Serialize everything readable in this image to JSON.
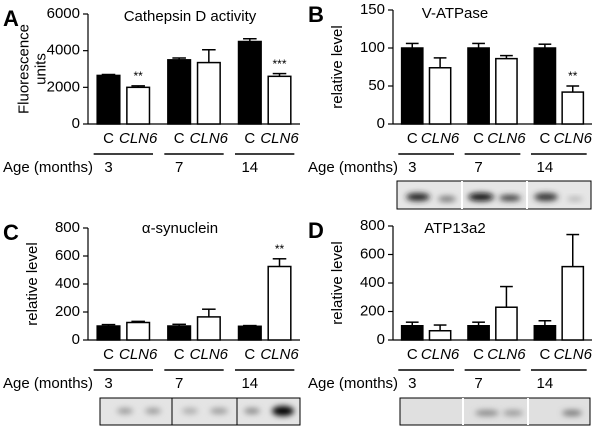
{
  "chart_data": [
    {
      "panel": "A",
      "type": "bar",
      "title": "Cathepsin D activity",
      "y_label": [
        "Fluorescence",
        "units"
      ],
      "categories": [
        "C",
        "CLN6",
        "C",
        "CLN6",
        "C",
        "CLN6"
      ],
      "values": [
        2650,
        2000,
        3500,
        3350,
        4500,
        2600
      ],
      "errors": [
        50,
        80,
        100,
        700,
        150,
        150
      ],
      "colors": [
        "#000000",
        "#ffffff",
        "#000000",
        "#ffffff",
        "#000000",
        "#ffffff"
      ],
      "annotations": [
        null,
        "**",
        null,
        null,
        null,
        "***"
      ],
      "group_label": "Age (months)",
      "groups": [
        "3",
        "7",
        "14"
      ],
      "ylim": [
        0,
        6000
      ],
      "yticks": [
        0,
        2000,
        4000,
        6000
      ]
    },
    {
      "panel": "B",
      "type": "bar",
      "title": "V-ATPase",
      "y_label": [
        "relative level"
      ],
      "categories": [
        "C",
        "CLN6",
        "C",
        "CLN6",
        "C",
        "CLN6"
      ],
      "values": [
        100,
        74,
        100,
        86,
        100,
        42
      ],
      "errors": [
        6,
        13,
        6,
        4,
        5,
        8
      ],
      "colors": [
        "#000000",
        "#ffffff",
        "#000000",
        "#ffffff",
        "#000000",
        "#ffffff"
      ],
      "annotations": [
        null,
        null,
        null,
        null,
        null,
        "**"
      ],
      "group_label": "Age (months)",
      "groups": [
        "3",
        "7",
        "14"
      ],
      "ylim": [
        0,
        150
      ],
      "yticks": [
        0,
        50,
        100,
        150
      ]
    },
    {
      "panel": "C",
      "type": "bar",
      "title": "α-synuclein",
      "y_label": [
        "relative level"
      ],
      "categories": [
        "C",
        "CLN6",
        "C",
        "CLN6",
        "C",
        "CLN6"
      ],
      "values": [
        100,
        125,
        100,
        165,
        98,
        525
      ],
      "errors": [
        10,
        8,
        12,
        55,
        5,
        55
      ],
      "colors": [
        "#000000",
        "#ffffff",
        "#000000",
        "#ffffff",
        "#000000",
        "#ffffff"
      ],
      "annotations": [
        null,
        null,
        null,
        null,
        null,
        "**"
      ],
      "group_label": "Age (months)",
      "groups": [
        "3",
        "7",
        "14"
      ],
      "ylim": [
        0,
        800
      ],
      "yticks": [
        0,
        200,
        400,
        600,
        800
      ]
    },
    {
      "panel": "D",
      "type": "bar",
      "title": "ATP13a2",
      "y_label": [
        "relative level"
      ],
      "categories": [
        "C",
        "CLN6",
        "C",
        "CLN6",
        "C",
        "CLN6"
      ],
      "values": [
        100,
        65,
        100,
        230,
        100,
        515
      ],
      "errors": [
        25,
        40,
        25,
        145,
        35,
        225
      ],
      "colors": [
        "#000000",
        "#ffffff",
        "#000000",
        "#ffffff",
        "#000000",
        "#ffffff"
      ],
      "annotations": [
        null,
        null,
        null,
        null,
        null,
        null
      ],
      "group_label": "Age (months)",
      "groups": [
        "3",
        "7",
        "14"
      ],
      "ylim": [
        0,
        800
      ],
      "yticks": [
        0,
        200,
        400,
        600,
        800
      ]
    }
  ]
}
